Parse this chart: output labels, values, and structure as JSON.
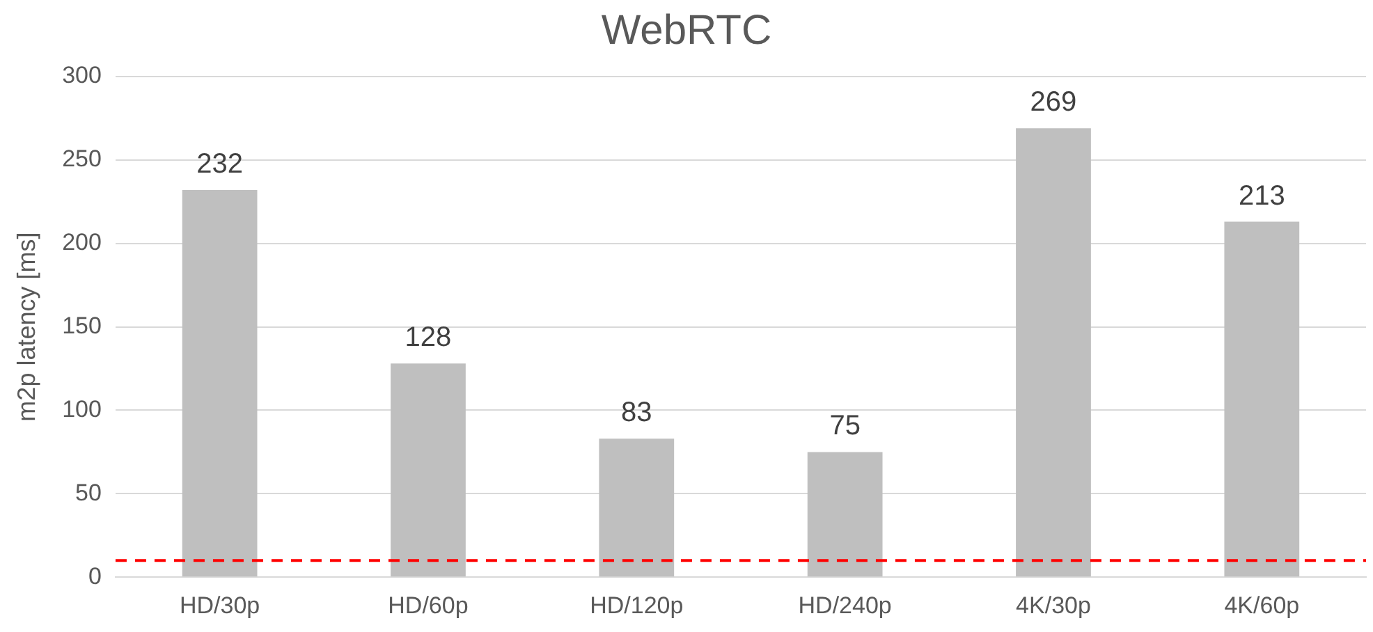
{
  "chart_data": {
    "type": "bar",
    "title": "WebRTC",
    "ylabel": "m2p latency [ms]",
    "categories": [
      "HD/30p",
      "HD/60p",
      "HD/120p",
      "HD/240p",
      "4K/30p",
      "4K/60p"
    ],
    "values": [
      232,
      128,
      83,
      75,
      269,
      213
    ],
    "color": "#bfbfbf",
    "ylim": [
      0,
      300
    ],
    "yticks": [
      0,
      50,
      100,
      150,
      200,
      250,
      300
    ],
    "grid": "y",
    "data_labels": true,
    "legend": false,
    "ref_lines": [
      {
        "axis": "y",
        "value": 10,
        "color": "#ff0000",
        "line_style": "dashed"
      }
    ]
  }
}
